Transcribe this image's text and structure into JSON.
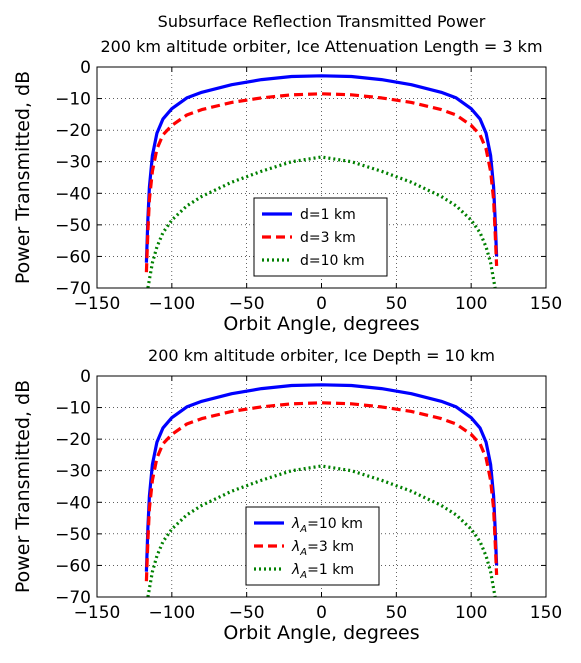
{
  "chart_data": [
    {
      "type": "line",
      "title_lines": [
        "Subsurface Reflection Transmitted Power",
        "200 km altitude orbiter, Ice Attenuation Length = 3 km"
      ],
      "xlabel": "Orbit Angle, degrees",
      "ylabel": "Power Transmitted, dB",
      "xlim": [
        -150,
        150
      ],
      "ylim": [
        -70,
        0
      ],
      "xticks": [
        -150,
        -100,
        -50,
        0,
        50,
        100,
        150
      ],
      "yticks": [
        0,
        -10,
        -20,
        -30,
        -40,
        -50,
        -60,
        -70
      ],
      "grid": true,
      "legend_position": "lower center",
      "series": [
        {
          "name": "d=1 km",
          "color": "#0000ff",
          "style": "solid",
          "x": [
            -117,
            -116,
            -115,
            -113,
            -110,
            -106,
            -100,
            -90,
            -80,
            -60,
            -40,
            -20,
            0,
            20,
            40,
            60,
            80,
            90,
            100,
            106,
            110,
            113,
            115,
            116,
            117
          ],
          "y": [
            -62,
            -48,
            -38,
            -28,
            -21,
            -16.5,
            -13.2,
            -9.8,
            -8.0,
            -5.6,
            -4.0,
            -3.0,
            -2.8,
            -3.0,
            -4.0,
            -5.6,
            -8.0,
            -9.8,
            -13.2,
            -16.5,
            -21,
            -28,
            -38,
            -48,
            -60
          ]
        },
        {
          "name": "d=3 km",
          "color": "#ff0000",
          "style": "dashed",
          "x": [
            -117,
            -116,
            -115,
            -113,
            -110,
            -106,
            -100,
            -90,
            -80,
            -60,
            -40,
            -20,
            0,
            20,
            40,
            60,
            80,
            90,
            100,
            106,
            110,
            113,
            115,
            116,
            117
          ],
          "y": [
            -65,
            -52,
            -42,
            -33,
            -26,
            -21.5,
            -18.5,
            -15.2,
            -13.5,
            -11.2,
            -9.8,
            -8.8,
            -8.5,
            -8.8,
            -9.8,
            -11.2,
            -13.5,
            -15.2,
            -18.5,
            -21.5,
            -26,
            -33,
            -42,
            -52,
            -63
          ]
        },
        {
          "name": "d=10 km",
          "color": "#008000",
          "style": "dotted",
          "x": [
            -116,
            -113,
            -110,
            -106,
            -100,
            -90,
            -80,
            -60,
            -40,
            -20,
            0,
            20,
            40,
            60,
            80,
            90,
            100,
            106,
            110,
            113,
            116
          ],
          "y": [
            -70,
            -62,
            -57,
            -52.5,
            -48.5,
            -44,
            -41,
            -36.5,
            -33,
            -30,
            -28.5,
            -30,
            -33,
            -36.5,
            -41,
            -44,
            -48.5,
            -52.5,
            -57,
            -62,
            -70
          ]
        }
      ]
    },
    {
      "type": "line",
      "title_lines": [
        "200 km altitude orbiter, Ice Depth = 10 km"
      ],
      "xlabel": "Orbit Angle, degrees",
      "ylabel": "Power Transmitted, dB",
      "xlim": [
        -150,
        150
      ],
      "ylim": [
        -70,
        0
      ],
      "xticks": [
        -150,
        -100,
        -50,
        0,
        50,
        100,
        150
      ],
      "yticks": [
        0,
        -10,
        -20,
        -30,
        -40,
        -50,
        -60,
        -70
      ],
      "grid": true,
      "legend_position": "lower center",
      "series": [
        {
          "name": "=10 km",
          "symbol": "λ",
          "sub": "A",
          "color": "#0000ff",
          "style": "solid",
          "x": [
            -117,
            -116,
            -115,
            -113,
            -110,
            -106,
            -100,
            -90,
            -80,
            -60,
            -40,
            -20,
            0,
            20,
            40,
            60,
            80,
            90,
            100,
            106,
            110,
            113,
            115,
            116,
            117
          ],
          "y": [
            -62,
            -48,
            -38,
            -28,
            -21,
            -16.5,
            -13.2,
            -9.8,
            -8.0,
            -5.6,
            -4.0,
            -3.0,
            -2.8,
            -3.0,
            -4.0,
            -5.6,
            -8.0,
            -9.8,
            -13.2,
            -16.5,
            -21,
            -28,
            -38,
            -48,
            -60
          ]
        },
        {
          "name": "=3 km",
          "symbol": "λ",
          "sub": "A",
          "color": "#ff0000",
          "style": "dashed",
          "x": [
            -117,
            -116,
            -115,
            -113,
            -110,
            -106,
            -100,
            -90,
            -80,
            -60,
            -40,
            -20,
            0,
            20,
            40,
            60,
            80,
            90,
            100,
            106,
            110,
            113,
            115,
            116,
            117
          ],
          "y": [
            -65,
            -52,
            -42,
            -33,
            -26,
            -21.5,
            -18.5,
            -15.2,
            -13.5,
            -11.2,
            -9.8,
            -8.8,
            -8.5,
            -8.8,
            -9.8,
            -11.2,
            -13.5,
            -15.2,
            -18.5,
            -21.5,
            -26,
            -33,
            -42,
            -52,
            -63
          ]
        },
        {
          "name": "=1 km",
          "symbol": "λ",
          "sub": "A",
          "color": "#008000",
          "style": "dotted",
          "x": [
            -116,
            -113,
            -110,
            -106,
            -100,
            -90,
            -80,
            -60,
            -40,
            -20,
            0,
            20,
            40,
            60,
            80,
            90,
            100,
            106,
            110,
            113,
            116
          ],
          "y": [
            -70,
            -62,
            -57,
            -52.5,
            -48.5,
            -44,
            -41,
            -36.5,
            -33,
            -30,
            -28.5,
            -30,
            -33,
            -36.5,
            -41,
            -44,
            -48.5,
            -52.5,
            -57,
            -62,
            -70
          ]
        }
      ]
    }
  ]
}
